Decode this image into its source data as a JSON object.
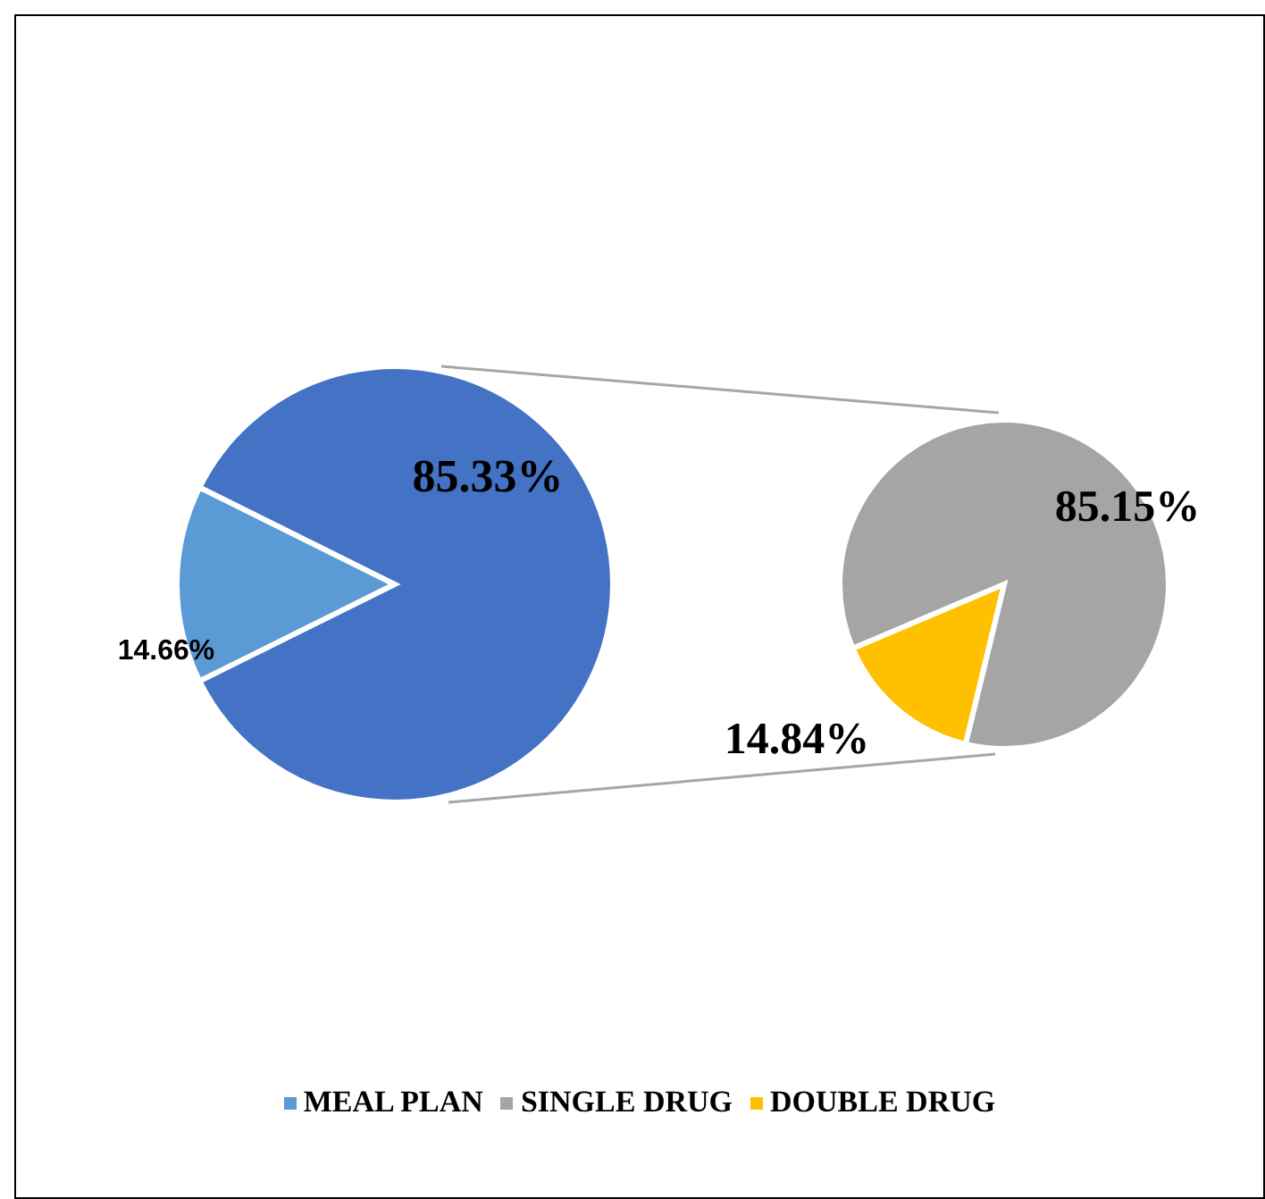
{
  "chart_data": [
    {
      "type": "pie",
      "categories": [
        "MEAL PLAN",
        null
      ],
      "values": [
        14.66,
        85.33
      ],
      "value_labels": [
        "14.66%",
        "85.33%"
      ],
      "colors": [
        "#5b9bd5",
        "#4472c4"
      ],
      "legend": "bottom"
    },
    {
      "type": "pie",
      "categories": [
        "SINGLE DRUG",
        "DOUBLE DRUG"
      ],
      "values": [
        85.15,
        14.84
      ],
      "value_labels": [
        "85.15%",
        "14.84%"
      ],
      "colors": [
        "#a5a5a5",
        "#ffc000"
      ],
      "legend": "bottom"
    }
  ]
}
